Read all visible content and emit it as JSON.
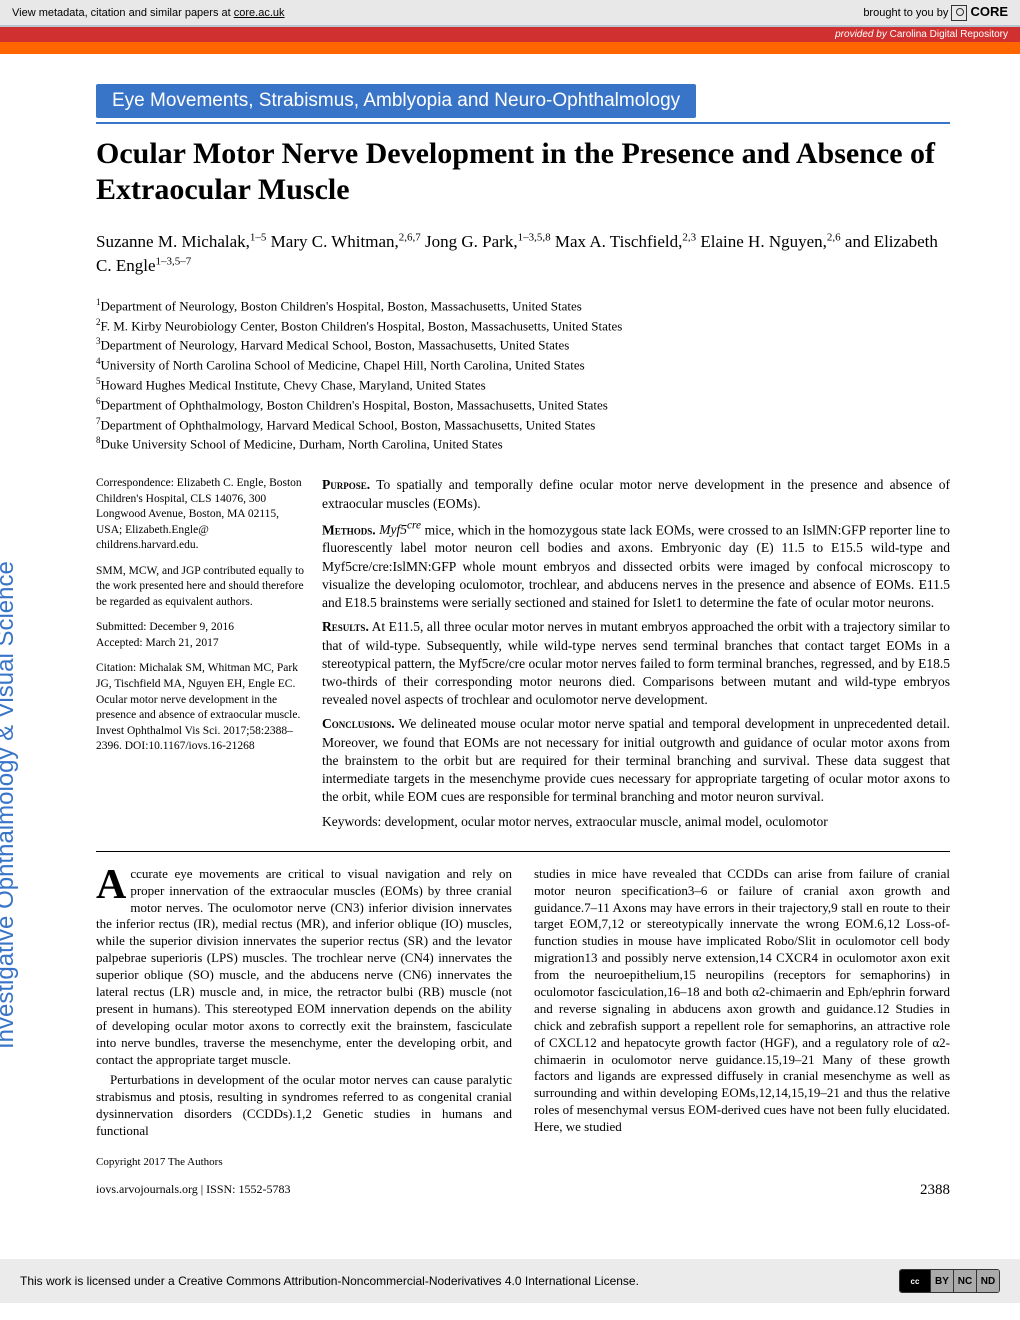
{
  "core_bar": {
    "left_prefix": "View metadata, citation and similar papers at ",
    "left_link": "core.ac.uk",
    "right_prefix": "brought to you by ",
    "logo": "CORE"
  },
  "provided_bar": {
    "italic": "provided by ",
    "source": "Carolina Digital Repository"
  },
  "section_banner": "Eye Movements, Strabismus, Amblyopia and Neuro-Ophthalmology",
  "title": "Ocular Motor Nerve Development in the Presence and Absence of Extraocular Muscle",
  "authors_html": "Suzanne M. Michalak,<sup>1–5</sup> Mary C. Whitman,<sup>2,6,7</sup> Jong G. Park,<sup>1–3,5,8</sup> Max A. Tischfield,<sup>2,3</sup> Elaine H. Nguyen,<sup>2,6</sup> and Elizabeth C. Engle<sup>1–3,5–7</sup>",
  "affiliations": [
    "Department of Neurology, Boston Children's Hospital, Boston, Massachusetts, United States",
    "F. M. Kirby Neurobiology Center, Boston Children's Hospital, Boston, Massachusetts, United States",
    "Department of Neurology, Harvard Medical School, Boston, Massachusetts, United States",
    "University of North Carolina School of Medicine, Chapel Hill, North Carolina, United States",
    "Howard Hughes Medical Institute, Chevy Chase, Maryland, United States",
    "Department of Ophthalmology, Boston Children's Hospital, Boston, Massachusetts, United States",
    "Department of Ophthalmology, Harvard Medical School, Boston, Massachusetts, United States",
    "Duke University School of Medicine, Durham, North Carolina, United States"
  ],
  "correspondence": {
    "block1": "Correspondence: Elizabeth C. Engle, Boston Children's Hospital, CLS 14076, 300 Longwood Avenue, Boston, MA 02115, USA; Elizabeth.Engle@ childrens.harvard.edu.",
    "block2": "SMM, MCW, and JGP contributed equally to the work presented here and should therefore be regarded as equivalent authors.",
    "block3": "Submitted: December 9, 2016\nAccepted: March 21, 2017",
    "block4": "Citation: Michalak SM, Whitman MC, Park JG, Tischfield MA, Nguyen EH, Engle EC. Ocular motor nerve development in the presence and absence of extraocular muscle. Invest Ophthalmol Vis Sci. 2017;58:2388–2396. DOI:10.1167/iovs.16-21268"
  },
  "abstract": {
    "purpose": "To spatially and temporally define ocular motor nerve development in the presence and absence of extraocular muscles (EOMs).",
    "methods": "Myf5cre mice, which in the homozygous state lack EOMs, were crossed to an IslMN:GFP reporter line to fluorescently label motor neuron cell bodies and axons. Embryonic day (E) 11.5 to E15.5 wild-type and Myf5cre/cre:IslMN:GFP whole mount embryos and dissected orbits were imaged by confocal microscopy to visualize the developing oculomotor, trochlear, and abducens nerves in the presence and absence of EOMs. E11.5 and E18.5 brainstems were serially sectioned and stained for Islet1 to determine the fate of ocular motor neurons.",
    "results": "At E11.5, all three ocular motor nerves in mutant embryos approached the orbit with a trajectory similar to that of wild-type. Subsequently, while wild-type nerves send terminal branches that contact target EOMs in a stereotypical pattern, the Myf5cre/cre ocular motor nerves failed to form terminal branches, regressed, and by E18.5 two-thirds of their corresponding motor neurons died. Comparisons between mutant and wild-type embryos revealed novel aspects of trochlear and oculomotor nerve development.",
    "conclusions": "We delineated mouse ocular motor nerve spatial and temporal development in unprecedented detail. Moreover, we found that EOMs are not necessary for initial outgrowth and guidance of ocular motor axons from the brainstem to the orbit but are required for their terminal branching and survival. These data suggest that intermediate targets in the mesenchyme provide cues necessary for appropriate targeting of ocular motor axons to the orbit, while EOM cues are responsible for terminal branching and motor neuron survival.",
    "keywords": "Keywords: development, ocular motor nerves, extraocular muscle, animal model, oculomotor"
  },
  "body": {
    "p1": "ccurate eye movements are critical to visual navigation and rely on proper innervation of the extraocular muscles (EOMs) by three cranial motor nerves. The oculomotor nerve (CN3) inferior division innervates the inferior rectus (IR), medial rectus (MR), and inferior oblique (IO) muscles, while the superior division innervates the superior rectus (SR) and the levator palpebrae superioris (LPS) muscles. The trochlear nerve (CN4) innervates the superior oblique (SO) muscle, and the abducens nerve (CN6) innervates the lateral rectus (LR) muscle and, in mice, the retractor bulbi (RB) muscle (not present in humans). This stereotyped EOM innervation depends on the ability of developing ocular motor axons to correctly exit the brainstem, fasciculate into nerve bundles, traverse the mesenchyme, enter the developing orbit, and contact the appropriate target muscle.",
    "p2": "Perturbations in development of the ocular motor nerves can cause paralytic strabismus and ptosis, resulting in syndromes referred to as congenital cranial dysinnervation disorders (CCDDs).1,2 Genetic studies in humans and functional",
    "p3": "studies in mice have revealed that CCDDs can arise from failure of cranial motor neuron specification3–6 or failure of cranial axon growth and guidance.7–11 Axons may have errors in their trajectory,9 stall en route to their target EOM,7,12 or stereotypically innervate the wrong EOM.6,12 Loss-of-function studies in mouse have implicated Robo/Slit in oculomotor cell body migration13 and possibly nerve extension,14 CXCR4 in oculomotor axon exit from the neuroepithelium,15 neuropilins (receptors for semaphorins) in oculomotor fasciculation,16–18 and both α2-chimaerin and Eph/ephrin forward and reverse signaling in abducens axon growth and guidance.12 Studies in chick and zebrafish support a repellent role for semaphorins, an attractive role of CXCL12 and hepatocyte growth factor (HGF), and a regulatory role of α2-chimaerin in oculomotor nerve guidance.15,19–21 Many of these growth factors and ligands are expressed diffusely in cranial mesenchyme as well as surrounding and within developing EOMs,12,14,15,19–21 and thus the relative roles of mesenchymal versus EOM-derived cues have not been fully elucidated. Here, we studied"
  },
  "footer": {
    "copyright": "Copyright 2017 The Authors",
    "journal_line": "iovs.arvojournals.org | ISSN: 1552-5783",
    "page": "2388"
  },
  "sidebar_text": "Investigative Ophthalmology & Visual Science",
  "license": {
    "text": "This work is licensed under a Creative Commons Attribution-Noncommercial-Noderivatives 4.0 International License.",
    "cc": "cc",
    "by": "BY",
    "nc": "NC",
    "nd": "ND"
  },
  "colors": {
    "orange": "#ff6600",
    "blue": "#3874c8",
    "red": "#d03030",
    "grey": "#e8e8e8"
  }
}
